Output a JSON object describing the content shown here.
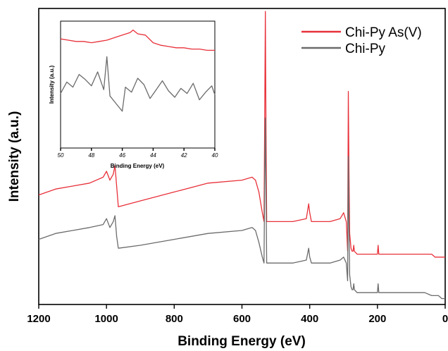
{
  "chart_data": [
    {
      "type": "line",
      "xlabel": "Binding Energy (eV)",
      "ylabel": "Intensity (a.u.)",
      "xlim": [
        1200,
        0
      ],
      "ylim": [
        0,
        100
      ],
      "x_reversed": true,
      "yticks_visible": false,
      "xticks": [
        1200,
        1000,
        800,
        600,
        400,
        200,
        0
      ],
      "legend_position": "top-right",
      "series": [
        {
          "name": "Chi-Py As(V)",
          "color": "#e8313a",
          "x": [
            1200,
            1150,
            1100,
            1050,
            1010,
            1000,
            990,
            980,
            975,
            970,
            965,
            900,
            800,
            700,
            600,
            570,
            560,
            550,
            540,
            535,
            533,
            531,
            529,
            527,
            520,
            500,
            450,
            410,
            403,
            400,
            395,
            380,
            340,
            310,
            300,
            292,
            288,
            286,
            284,
            282,
            278,
            275,
            272,
            270,
            268,
            260,
            240,
            210,
            200,
            198,
            196,
            190,
            150,
            100,
            60,
            40,
            30,
            20,
            10,
            0
          ],
          "y": [
            37,
            39,
            40,
            41,
            43,
            45,
            42,
            44,
            47,
            40,
            33,
            35,
            38,
            41,
            42,
            43,
            42,
            38,
            31,
            28,
            60,
            99,
            60,
            28,
            28,
            28,
            28,
            29,
            34,
            31,
            28,
            28,
            28,
            29,
            31,
            28,
            18,
            72,
            45,
            24,
            19,
            18,
            18,
            20,
            18,
            17,
            17,
            17,
            17,
            20,
            17,
            17,
            17,
            17,
            17,
            17,
            16,
            16,
            16,
            16
          ]
        },
        {
          "name": "Chi-Py",
          "color": "#6b6b6b",
          "x": [
            1200,
            1150,
            1100,
            1050,
            1010,
            1000,
            990,
            980,
            975,
            970,
            965,
            900,
            800,
            700,
            600,
            570,
            560,
            550,
            540,
            535,
            533,
            531,
            529,
            527,
            520,
            500,
            450,
            410,
            403,
            400,
            395,
            380,
            340,
            310,
            300,
            292,
            288,
            286,
            284,
            282,
            278,
            275,
            272,
            270,
            268,
            260,
            240,
            210,
            200,
            198,
            196,
            190,
            150,
            100,
            60,
            40,
            30,
            20,
            10,
            0
          ],
          "y": [
            22,
            24,
            25,
            26,
            27,
            29,
            26,
            28,
            30,
            23,
            19,
            20,
            22,
            24,
            25,
            26,
            25,
            21,
            16,
            14,
            40,
            63,
            40,
            14,
            14,
            14,
            14,
            15,
            19,
            16,
            14,
            14,
            14,
            15,
            16,
            14,
            8,
            50,
            28,
            10,
            6,
            5,
            5,
            7,
            5,
            4,
            4,
            4,
            4,
            7,
            4,
            4,
            4,
            4,
            4,
            3,
            3,
            3,
            2,
            2
          ]
        }
      ]
    },
    {
      "type": "line",
      "xlabel": "Binding Energy (eV)",
      "ylabel": "Intensity (a.u.)",
      "xlim": [
        50,
        40
      ],
      "x_reversed": true,
      "xticks": [
        50,
        48,
        46,
        44,
        42,
        40
      ],
      "series": [
        {
          "name": "Chi-Py As(V)",
          "color": "#e8313a",
          "x": [
            50,
            49.5,
            49,
            48.5,
            48,
            47.5,
            47,
            46.5,
            46,
            45.5,
            45.3,
            45,
            44.5,
            44,
            43.5,
            43,
            42.5,
            42,
            41.5,
            41,
            40.5,
            40
          ],
          "y": [
            86,
            85,
            84,
            84,
            83,
            84,
            85,
            87,
            89,
            91,
            93,
            90,
            89,
            83,
            81,
            80,
            79,
            79,
            78,
            78,
            77,
            77
          ]
        },
        {
          "name": "Chi-Py",
          "color": "#6b6b6b",
          "x": [
            50,
            49.6,
            49.2,
            48.8,
            48.4,
            48,
            47.6,
            47.2,
            47,
            46.8,
            46.4,
            46,
            45.8,
            45.4,
            45,
            44.6,
            44.2,
            43.8,
            43.4,
            43,
            42.6,
            42.2,
            41.8,
            41.4,
            41,
            40.6,
            40.2,
            40
          ],
          "y": [
            43,
            52,
            48,
            58,
            54,
            49,
            60,
            46,
            72,
            41,
            35,
            29,
            48,
            44,
            55,
            50,
            39,
            46,
            53,
            45,
            40,
            47,
            43,
            51,
            38,
            44,
            49,
            42
          ]
        }
      ]
    }
  ]
}
